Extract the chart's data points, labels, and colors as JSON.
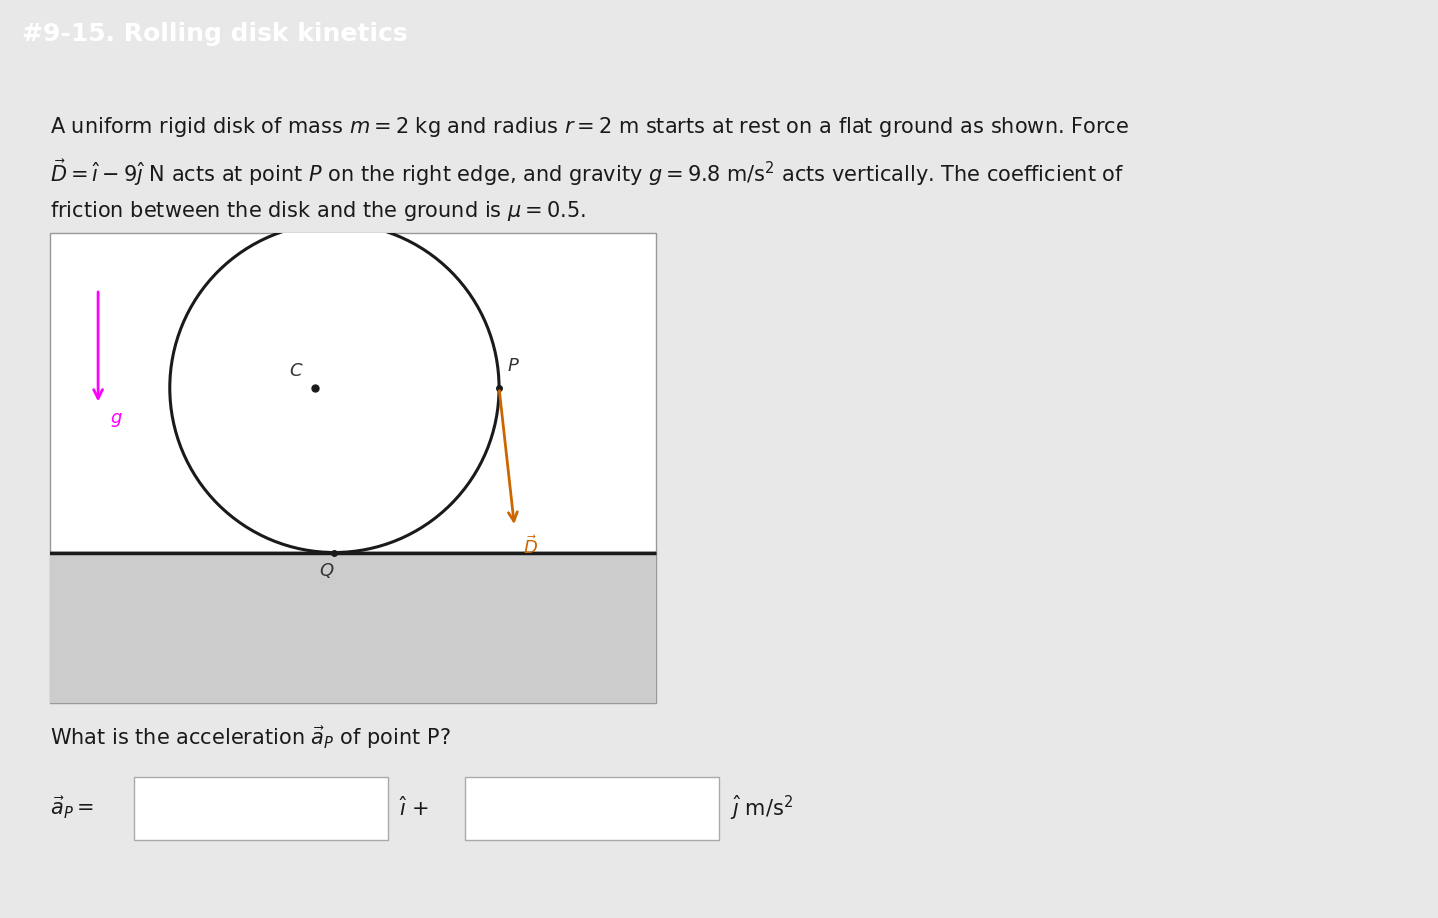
{
  "title": "#9-15. Rolling disk kinetics",
  "title_bg_color": "#4A90C4",
  "title_text_color": "#FFFFFF",
  "bg_color": "#FFFFFF",
  "outer_bg_color": "#E8E8E8",
  "body_text_line1": "A uniform rigid disk of mass $m = 2$ kg and radius $r = 2$ m starts at rest on a flat ground as shown. Force",
  "body_text_line2": "$\\vec{D} = \\hat{\\imath} - 9\\hat{\\jmath}$ N acts at point $P$ on the right edge, and gravity $g = 9.8$ m/s$^2$ acts vertically. The coefficient of",
  "body_text_line3": "friction between the disk and the ground is $\\mu = 0.5$.",
  "question_text": "What is the acceleration $\\vec{a}_P$ of point P?",
  "g_arrow_color": "#FF00FF",
  "D_arrow_color": "#CC6600",
  "disk_color": "#1a1a1a",
  "ground_color": "#1a1a1a",
  "ground_shadow_color": "#CCCCCC",
  "label_color": "#333333",
  "title_fontsize": 18,
  "body_fontsize": 15,
  "label_fontsize": 13
}
